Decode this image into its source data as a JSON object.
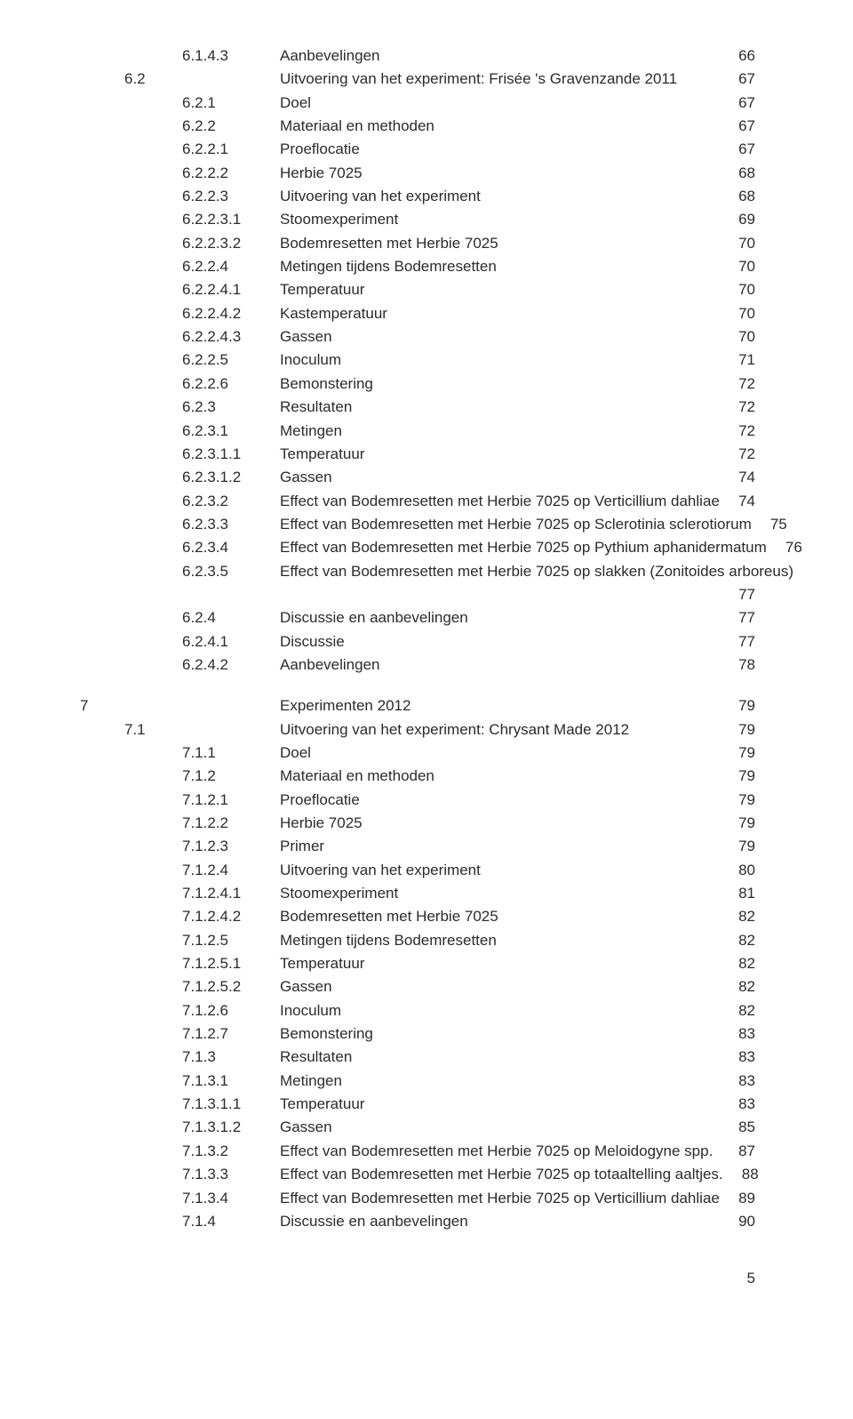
{
  "toc": [
    {
      "chapter": "",
      "section": "",
      "num": "6.1.4.3",
      "title": "Aanbevelingen",
      "page": "66"
    },
    {
      "chapter": "",
      "section": "6.2",
      "num": "",
      "title": "Uitvoering van het experiment: Frisée 's Gravenzande 2011",
      "page": "67"
    },
    {
      "chapter": "",
      "section": "",
      "num": "6.2.1",
      "title": "Doel",
      "page": "67"
    },
    {
      "chapter": "",
      "section": "",
      "num": "6.2.2",
      "title": "Materiaal en methoden",
      "page": "67"
    },
    {
      "chapter": "",
      "section": "",
      "num": "6.2.2.1",
      "title": "Proeflocatie",
      "page": "67"
    },
    {
      "chapter": "",
      "section": "",
      "num": "6.2.2.2",
      "title": "Herbie 7025",
      "page": "68"
    },
    {
      "chapter": "",
      "section": "",
      "num": "6.2.2.3",
      "title": "Uitvoering van het experiment",
      "page": "68"
    },
    {
      "chapter": "",
      "section": "",
      "num": "6.2.2.3.1",
      "title": "Stoomexperiment",
      "page": "69"
    },
    {
      "chapter": "",
      "section": "",
      "num": "6.2.2.3.2",
      "title": "Bodemresetten met Herbie 7025",
      "page": "70"
    },
    {
      "chapter": "",
      "section": "",
      "num": "6.2.2.4",
      "title": "Metingen tijdens Bodemresetten",
      "page": "70"
    },
    {
      "chapter": "",
      "section": "",
      "num": "6.2.2.4.1",
      "title": "Temperatuur",
      "page": "70"
    },
    {
      "chapter": "",
      "section": "",
      "num": "6.2.2.4.2",
      "title": "Kastemperatuur",
      "page": "70"
    },
    {
      "chapter": "",
      "section": "",
      "num": "6.2.2.4.3",
      "title": "Gassen",
      "page": "70"
    },
    {
      "chapter": "",
      "section": "",
      "num": "6.2.2.5",
      "title": "Inoculum",
      "page": "71"
    },
    {
      "chapter": "",
      "section": "",
      "num": "6.2.2.6",
      "title": "Bemonstering",
      "page": "72"
    },
    {
      "chapter": "",
      "section": "",
      "num": "6.2.3",
      "title": "Resultaten",
      "page": "72"
    },
    {
      "chapter": "",
      "section": "",
      "num": "6.2.3.1",
      "title": "Metingen",
      "page": "72"
    },
    {
      "chapter": "",
      "section": "",
      "num": "6.2.3.1.1",
      "title": "Temperatuur",
      "page": "72"
    },
    {
      "chapter": "",
      "section": "",
      "num": "6.2.3.1.2",
      "title": "Gassen",
      "page": "74"
    },
    {
      "chapter": "",
      "section": "",
      "num": "6.2.3.2",
      "title": "Effect van Bodemresetten met Herbie 7025 op Verticillium dahliae",
      "page": "74"
    },
    {
      "chapter": "",
      "section": "",
      "num": "6.2.3.3",
      "title": "Effect van Bodemresetten met Herbie 7025 op Sclerotinia sclerotiorum",
      "page": "75"
    },
    {
      "chapter": "",
      "section": "",
      "num": "6.2.3.4",
      "title": "Effect van Bodemresetten met Herbie 7025 op Pythium aphanidermatum",
      "page": "76"
    },
    {
      "chapter": "",
      "section": "",
      "num": "6.2.3.5",
      "title": "Effect van Bodemresetten met Herbie 7025 op slakken (Zonitoides arboreus)",
      "page": ""
    },
    {
      "chapter": "",
      "section": "",
      "num": "",
      "title": "",
      "page": "77"
    },
    {
      "chapter": "",
      "section": "",
      "num": "6.2.4",
      "title": "Discussie en aanbevelingen",
      "page": "77"
    },
    {
      "chapter": "",
      "section": "",
      "num": "6.2.4.1",
      "title": "Discussie",
      "page": "77"
    },
    {
      "chapter": "",
      "section": "",
      "num": "6.2.4.2",
      "title": "Aanbevelingen",
      "page": "78"
    },
    {
      "gap": true
    },
    {
      "chapter": "7",
      "section": "",
      "num": "",
      "title": "Experimenten 2012",
      "page": "79"
    },
    {
      "chapter": "",
      "section": "7.1",
      "num": "",
      "title": "Uitvoering van het experiment: Chrysant Made 2012",
      "page": "79"
    },
    {
      "chapter": "",
      "section": "",
      "num": "7.1.1",
      "title": "Doel",
      "page": "79"
    },
    {
      "chapter": "",
      "section": "",
      "num": "7.1.2",
      "title": "Materiaal en methoden",
      "page": "79"
    },
    {
      "chapter": "",
      "section": "",
      "num": "7.1.2.1",
      "title": "Proeflocatie",
      "page": "79"
    },
    {
      "chapter": "",
      "section": "",
      "num": "7.1.2.2",
      "title": "Herbie 7025",
      "page": "79"
    },
    {
      "chapter": "",
      "section": "",
      "num": "7.1.2.3",
      "title": "Primer",
      "page": "79"
    },
    {
      "chapter": "",
      "section": "",
      "num": "7.1.2.4",
      "title": "Uitvoering van het experiment",
      "page": "80"
    },
    {
      "chapter": "",
      "section": "",
      "num": "7.1.2.4.1",
      "title": "Stoomexperiment",
      "page": "81"
    },
    {
      "chapter": "",
      "section": "",
      "num": "7.1.2.4.2",
      "title": "Bodemresetten met Herbie 7025",
      "page": "82"
    },
    {
      "chapter": "",
      "section": "",
      "num": "7.1.2.5",
      "title": "Metingen tijdens Bodemresetten",
      "page": "82"
    },
    {
      "chapter": "",
      "section": "",
      "num": "7.1.2.5.1",
      "title": "Temperatuur",
      "page": "82"
    },
    {
      "chapter": "",
      "section": "",
      "num": "7.1.2.5.2",
      "title": "Gassen",
      "page": "82"
    },
    {
      "chapter": "",
      "section": "",
      "num": "7.1.2.6",
      "title": "Inoculum",
      "page": "82"
    },
    {
      "chapter": "",
      "section": "",
      "num": "7.1.2.7",
      "title": "Bemonstering",
      "page": "83"
    },
    {
      "chapter": "",
      "section": "",
      "num": "7.1.3",
      "title": "Resultaten",
      "page": "83"
    },
    {
      "chapter": "",
      "section": "",
      "num": "7.1.3.1",
      "title": "Metingen",
      "page": "83"
    },
    {
      "chapter": "",
      "section": "",
      "num": "7.1.3.1.1",
      "title": "Temperatuur",
      "page": "83"
    },
    {
      "chapter": "",
      "section": "",
      "num": "7.1.3.1.2",
      "title": "Gassen",
      "page": "85"
    },
    {
      "chapter": "",
      "section": "",
      "num": "7.1.3.2",
      "title": "Effect van Bodemresetten met Herbie 7025 op Meloidogyne spp.",
      "page": "87"
    },
    {
      "chapter": "",
      "section": "",
      "num": "7.1.3.3",
      "title": "Effect van Bodemresetten met Herbie 7025 op totaaltelling aaltjes.",
      "page": "88"
    },
    {
      "chapter": "",
      "section": "",
      "num": "7.1.3.4",
      "title": "Effect van Bodemresetten met Herbie 7025 op Verticillium dahliae",
      "page": "89"
    },
    {
      "chapter": "",
      "section": "",
      "num": "7.1.4",
      "title": "Discussie en aanbevelingen",
      "page": "90"
    }
  ],
  "footerPage": "5"
}
